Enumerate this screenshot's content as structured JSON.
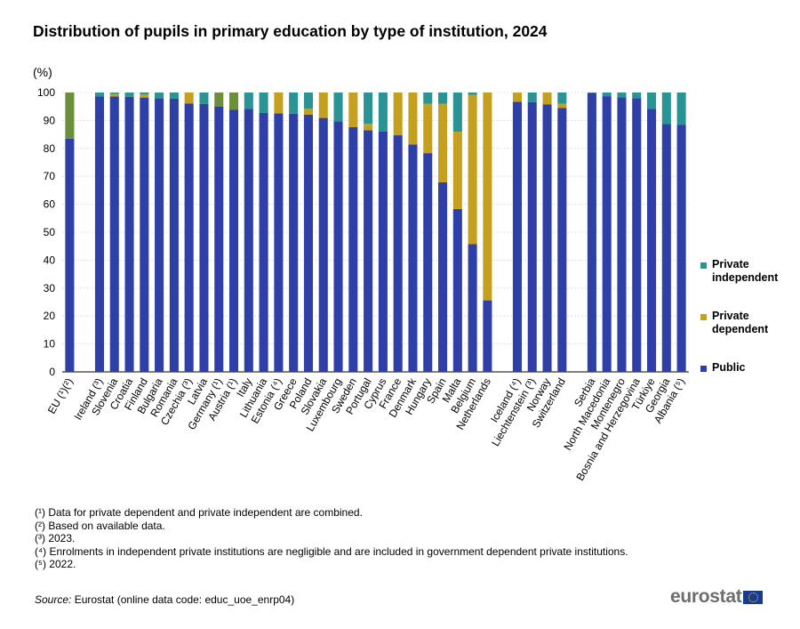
{
  "header": {
    "title": "Distribution of pupils in primary education by type of institution, 2024",
    "unit": "(%)"
  },
  "legend": {
    "items": [
      {
        "label": "Private independent",
        "color": "#2a9393"
      },
      {
        "label": "Private dependent",
        "color": "#c5a01e"
      },
      {
        "label": "Public",
        "color": "#2e3fa8"
      }
    ]
  },
  "footnotes": [
    "(¹) Data for private dependent and private independent are combined.",
    "(²) Based on available data.",
    "(³) 2023.",
    "(⁴) Enrolments in independent private institutions are negligible and are included in government dependent private institutions.",
    "(⁵) 2022."
  ],
  "source": {
    "label": "Source:",
    "text": "Eurostat (online data code: educ_uoe_enrp04)"
  },
  "logo": {
    "text": "eurostat"
  },
  "chart_data": {
    "type": "bar",
    "stacked": true,
    "ylim": [
      0,
      100
    ],
    "yticks": [
      0,
      10,
      20,
      30,
      40,
      50,
      60,
      70,
      80,
      90,
      100
    ],
    "ylabel": "(%)",
    "grid": true,
    "legend_position": "right",
    "combined_color": "#6b8f3a",
    "groups": [
      {
        "categories": [
          "EU (¹)(²)"
        ]
      },
      {
        "categories": [
          "Ireland (³)",
          "Slovenia",
          "Croatia",
          "Finland",
          "Bulgaria",
          "Romania",
          "Czechia (³)",
          "Latvia",
          "Germany (¹)",
          "Austria (¹)",
          "Italy",
          "Lithuania",
          "Estonia (⁴)",
          "Greece",
          "Poland",
          "Slovakia",
          "Luxembourg",
          "Sweden",
          "Portugal",
          "Cyprus",
          "France",
          "Denmark",
          "Hungary",
          "Spain",
          "Malta",
          "Belgium",
          "Netherlands"
        ]
      },
      {
        "categories": [
          "Iceland (⁴)",
          "Liechtenstein (³)",
          "Norway",
          "Switzerland"
        ]
      },
      {
        "categories": [
          "Serbia",
          "North Macedonia",
          "Montenegro",
          "Bosnia and Herzegovina",
          "Türkiye",
          "Georgia",
          "Albania (⁵)"
        ]
      }
    ],
    "categories": [
      "EU (¹)(²)",
      "Ireland (³)",
      "Slovenia",
      "Croatia",
      "Finland",
      "Bulgaria",
      "Romania",
      "Czechia (³)",
      "Latvia",
      "Germany (¹)",
      "Austria (¹)",
      "Italy",
      "Lithuania",
      "Estonia (⁴)",
      "Greece",
      "Poland",
      "Slovakia",
      "Luxembourg",
      "Sweden",
      "Portugal",
      "Cyprus",
      "France",
      "Denmark",
      "Hungary",
      "Spain",
      "Malta",
      "Belgium",
      "Netherlands",
      "Iceland (⁴)",
      "Liechtenstein (³)",
      "Norway",
      "Switzerland",
      "Serbia",
      "North Macedonia",
      "Montenegro",
      "Bosnia and Herzegovina",
      "Türkiye",
      "Georgia",
      "Albania (⁵)"
    ],
    "series": [
      {
        "name": "Public",
        "color": "#2e3fa8",
        "values": [
          83.5,
          98.6,
          98.6,
          98.5,
          98.2,
          97.9,
          97.8,
          96.1,
          95.9,
          94.9,
          93.9,
          94.2,
          92.7,
          92.5,
          92.4,
          92.1,
          90.9,
          89.7,
          87.6,
          86.5,
          86.1,
          84.7,
          81.4,
          78.3,
          67.9,
          58.3,
          45.7,
          25.6,
          96.7,
          96.6,
          95.7,
          94.5,
          99.9,
          98.7,
          98.3,
          98.0,
          94.2,
          88.8,
          88.5
        ]
      },
      {
        "name": "Private dependent",
        "color": "#c5a01e",
        "values": [
          0,
          0,
          0.9,
          0,
          1.1,
          0,
          0,
          3.9,
          0,
          0,
          0,
          0,
          0,
          7.5,
          0,
          2.1,
          9.1,
          0,
          12.4,
          2.3,
          0,
          15.3,
          18.6,
          17.7,
          28.1,
          27.7,
          53.5,
          74.4,
          3.3,
          0,
          4.3,
          1.5,
          0,
          0,
          0,
          0,
          0,
          0,
          0
        ]
      },
      {
        "name": "Private independent",
        "color": "#2a9393",
        "values": [
          0,
          1.4,
          0.5,
          1.5,
          0.7,
          2.1,
          2.2,
          0,
          4.1,
          0,
          0,
          5.8,
          7.3,
          0,
          7.6,
          5.8,
          0,
          10.3,
          0,
          11.2,
          13.9,
          0,
          0,
          4.0,
          4.0,
          14.0,
          0.8,
          0,
          0,
          3.4,
          0,
          4.0,
          0.1,
          1.3,
          1.7,
          2.0,
          5.8,
          11.2,
          11.5
        ]
      },
      {
        "name": "Private (combined)",
        "color": "#6b8f3a",
        "values": [
          16.5,
          0,
          0,
          0,
          0,
          0,
          0,
          0,
          0,
          5.1,
          6.1,
          0,
          0,
          0,
          0,
          0,
          0,
          0,
          0,
          0,
          0,
          0,
          0,
          0,
          0,
          0,
          0,
          0,
          0,
          0,
          0,
          0,
          0,
          0,
          0,
          0,
          0,
          0,
          0
        ]
      }
    ]
  }
}
